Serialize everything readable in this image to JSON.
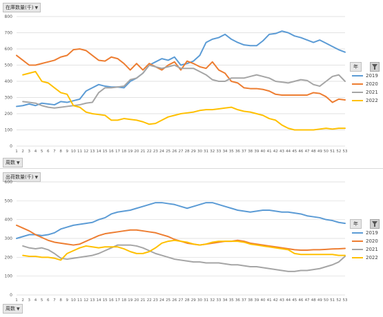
{
  "charts": [
    {
      "title_button": "在庫数量(千)",
      "x_axis_button": "周数",
      "legend_header": "年"
    },
    {
      "title_button": "出荷数量(千)",
      "x_axis_button": "周数",
      "legend_header": "年"
    }
  ],
  "chart_data": [
    {
      "type": "line",
      "categories": [
        "1",
        "2",
        "3",
        "4",
        "5",
        "6",
        "7",
        "8",
        "9",
        "10",
        "11",
        "12",
        "13",
        "14",
        "15",
        "16",
        "17",
        "18",
        "19",
        "20",
        "21",
        "22",
        "23",
        "24",
        "25",
        "26",
        "27",
        "28",
        "29",
        "30",
        "31",
        "32",
        "33",
        "34",
        "35",
        "36",
        "37",
        "38",
        "39",
        "40",
        "41",
        "42",
        "43",
        "44",
        "45",
        "46",
        "47",
        "48",
        "49",
        "50",
        "51",
        "52",
        "53"
      ],
      "ylim": [
        0,
        800
      ],
      "yticks": [
        0,
        100,
        200,
        300,
        400,
        500,
        600,
        700,
        800
      ],
      "grid": true,
      "legend_position": "right",
      "series": [
        {
          "name": "2019",
          "color": "#5b9bd5",
          "values": [
            245,
            250,
            260,
            250,
            265,
            260,
            255,
            275,
            270,
            280,
            290,
            340,
            360,
            380,
            370,
            365,
            365,
            360,
            400,
            420,
            450,
            500,
            520,
            540,
            530,
            550,
            500,
            510,
            525,
            560,
            640,
            660,
            670,
            690,
            660,
            640,
            625,
            620,
            620,
            650,
            690,
            695,
            710,
            700,
            680,
            670,
            655,
            640,
            655,
            635,
            615,
            595,
            580
          ]
        },
        {
          "name": "2020",
          "color": "#ed7d31",
          "values": [
            560,
            530,
            500,
            500,
            510,
            520,
            530,
            550,
            560,
            595,
            600,
            590,
            560,
            530,
            525,
            550,
            540,
            510,
            470,
            510,
            470,
            510,
            490,
            470,
            500,
            520,
            470,
            525,
            510,
            490,
            480,
            520,
            470,
            450,
            400,
            390,
            360,
            355,
            355,
            350,
            340,
            320,
            315,
            315,
            315,
            315,
            315,
            330,
            325,
            305,
            270,
            290,
            285
          ]
        },
        {
          "name": "2021",
          "color": "#a5a5a5",
          "values": [
            null,
            275,
            270,
            265,
            250,
            240,
            235,
            240,
            245,
            250,
            255,
            265,
            270,
            330,
            360,
            360,
            365,
            370,
            410,
            420,
            450,
            500,
            490,
            480,
            490,
            500,
            480,
            480,
            480,
            460,
            440,
            410,
            400,
            400,
            420,
            420,
            420,
            430,
            440,
            430,
            420,
            400,
            395,
            390,
            400,
            410,
            405,
            380,
            370,
            400,
            430,
            440,
            400
          ]
        },
        {
          "name": "2022",
          "color": "#ffc000",
          "values": [
            null,
            440,
            450,
            460,
            400,
            390,
            360,
            330,
            320,
            250,
            240,
            210,
            200,
            195,
            190,
            160,
            160,
            170,
            165,
            160,
            150,
            135,
            140,
            160,
            180,
            190,
            200,
            205,
            210,
            220,
            225,
            225,
            230,
            235,
            240,
            225,
            215,
            210,
            200,
            190,
            170,
            160,
            130,
            110,
            100,
            100,
            100,
            100,
            105,
            110,
            105,
            110,
            110
          ]
        }
      ]
    },
    {
      "type": "line",
      "categories": [
        "1",
        "2",
        "3",
        "4",
        "5",
        "6",
        "7",
        "8",
        "9",
        "10",
        "11",
        "12",
        "13",
        "14",
        "15",
        "16",
        "17",
        "18",
        "19",
        "20",
        "21",
        "22",
        "23",
        "24",
        "25",
        "26",
        "27",
        "28",
        "29",
        "30",
        "31",
        "32",
        "33",
        "34",
        "35",
        "36",
        "37",
        "38",
        "39",
        "40",
        "41",
        "42",
        "43",
        "44",
        "45",
        "46",
        "47",
        "48",
        "49",
        "50",
        "51",
        "52",
        "53"
      ],
      "ylim": [
        0,
        600
      ],
      "yticks": [
        0,
        100,
        200,
        300,
        400,
        500,
        600
      ],
      "grid": true,
      "legend_position": "right",
      "series": [
        {
          "name": "2019",
          "color": "#5b9bd5",
          "values": [
            300,
            310,
            320,
            320,
            315,
            320,
            330,
            350,
            360,
            370,
            375,
            380,
            385,
            400,
            410,
            430,
            440,
            445,
            450,
            460,
            470,
            480,
            490,
            490,
            485,
            480,
            470,
            460,
            470,
            480,
            490,
            490,
            480,
            470,
            460,
            450,
            445,
            440,
            445,
            450,
            450,
            445,
            440,
            440,
            435,
            430,
            420,
            415,
            410,
            400,
            395,
            385,
            380
          ]
        },
        {
          "name": "2020",
          "color": "#ed7d31",
          "values": [
            370,
            355,
            340,
            320,
            305,
            290,
            280,
            275,
            270,
            265,
            270,
            285,
            300,
            315,
            325,
            330,
            335,
            340,
            345,
            345,
            340,
            335,
            330,
            320,
            310,
            295,
            285,
            275,
            270,
            265,
            270,
            275,
            280,
            285,
            285,
            290,
            285,
            275,
            270,
            265,
            260,
            255,
            250,
            245,
            240,
            238,
            238,
            240,
            240,
            242,
            244,
            245,
            247
          ]
        },
        {
          "name": "2021",
          "color": "#a5a5a5",
          "values": [
            null,
            260,
            250,
            245,
            250,
            240,
            220,
            195,
            190,
            195,
            200,
            205,
            210,
            220,
            235,
            250,
            265,
            265,
            265,
            260,
            250,
            235,
            220,
            210,
            200,
            190,
            185,
            180,
            175,
            175,
            170,
            170,
            170,
            165,
            160,
            160,
            155,
            150,
            150,
            145,
            140,
            135,
            130,
            125,
            125,
            130,
            130,
            135,
            140,
            150,
            160,
            175,
            205
          ]
        },
        {
          "name": "2022",
          "color": "#ffc000",
          "values": [
            null,
            210,
            205,
            205,
            200,
            200,
            195,
            185,
            220,
            235,
            250,
            260,
            255,
            250,
            255,
            255,
            255,
            245,
            230,
            220,
            220,
            230,
            250,
            275,
            285,
            290,
            285,
            280,
            270,
            265,
            270,
            280,
            285,
            285,
            285,
            285,
            280,
            270,
            265,
            260,
            255,
            250,
            245,
            240,
            220,
            215,
            215,
            215,
            215,
            215,
            215,
            210,
            210
          ]
        }
      ]
    }
  ]
}
